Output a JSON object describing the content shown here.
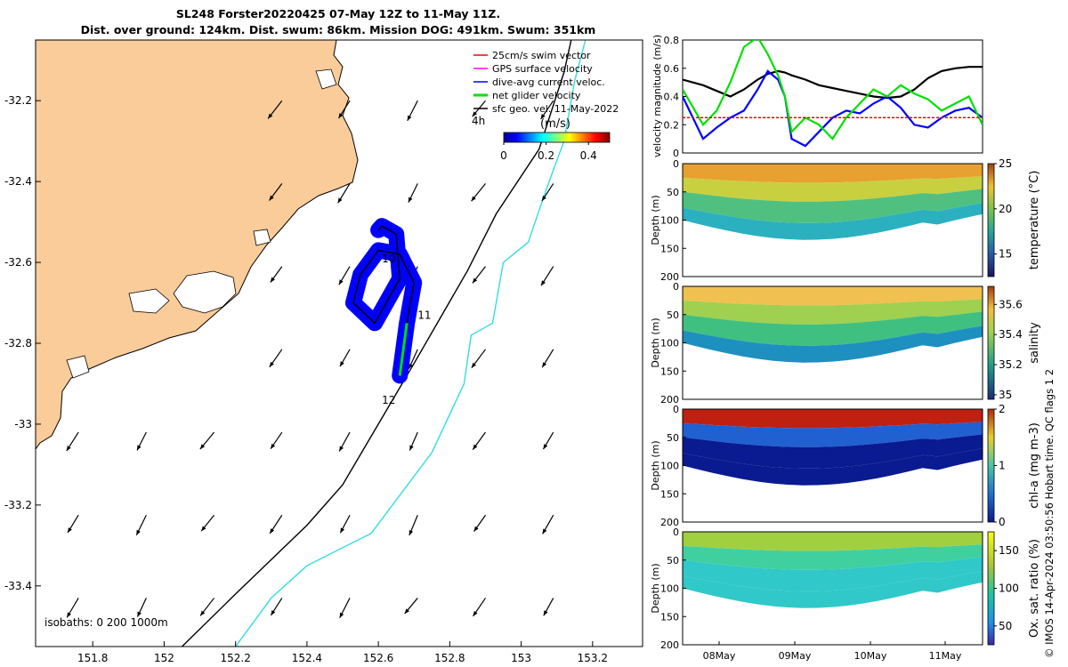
{
  "title_line1": "SL248 Forster20220425 07-May 12Z to 11-May 11Z.",
  "title_line2": "Dist. over ground: 124km. Dist. swum: 86km. Mission DOG: 491km. Swum: 351km",
  "footer": "© IMOS 14-Apr-2024 03:50:56 Hobart time. QC flags 1  2",
  "colors": {
    "land": "#f9cc9a",
    "dive_avg": "#0000ff",
    "swim": "#ff0000",
    "net": "#00e000",
    "gps": "#ff00ff",
    "isobath_200": "#000000",
    "isobath_1000": "#33dddd"
  },
  "chart_data": [
    {
      "type": "map",
      "x_ticks": [
        "151.8",
        "152",
        "152.2",
        "152.4",
        "152.6",
        "152.8",
        "153",
        "153.2"
      ],
      "y_ticks": [
        "-32.2",
        "-32.4",
        "-32.6",
        "-32.8",
        "-33",
        "-33.2",
        "-33.4"
      ],
      "xlim": [
        151.64,
        153.34
      ],
      "ylim": [
        -33.55,
        -32.05
      ],
      "legend": [
        {
          "label": "25cm/s swim vector",
          "color": "#ff0000"
        },
        {
          "label": "GPS surface velocity",
          "color": "#ff00ff"
        },
        {
          "label": "dive-avg current veloc.",
          "color": "#0000ff"
        },
        {
          "label": "net glider velocity",
          "color": "#00e000"
        },
        {
          "label": "sfc geo. vel. 11-May-2022",
          "color": "#000000"
        }
      ],
      "legend_placement": "top-right",
      "colorbar": {
        "label": "(m/s)",
        "range": [
          0,
          0.5
        ],
        "ticks": [
          "0",
          "0.2",
          "0.4"
        ],
        "colormap": "jet"
      },
      "scale_label": "4h",
      "day_labels": [
        {
          "text": "10",
          "x": 152.61,
          "y": -32.6
        },
        {
          "text": "11",
          "x": 152.71,
          "y": -32.74
        },
        {
          "text": "12",
          "x": 152.61,
          "y": -32.95
        }
      ],
      "isobaths_label": "isobaths: 0   200  1000m",
      "track": [
        [
          152.66,
          -32.88
        ],
        [
          152.68,
          -32.75
        ],
        [
          152.7,
          -32.65
        ],
        [
          152.66,
          -32.58
        ],
        [
          152.6,
          -32.57
        ],
        [
          152.55,
          -32.63
        ],
        [
          152.53,
          -32.7
        ],
        [
          152.59,
          -32.75
        ],
        [
          152.66,
          -32.64
        ],
        [
          152.65,
          -32.53
        ],
        [
          152.61,
          -32.51
        ],
        [
          152.6,
          -32.52
        ]
      ],
      "isobath_200": [
        [
          152.05,
          -33.55
        ],
        [
          152.2,
          -33.42
        ],
        [
          152.4,
          -33.25
        ],
        [
          152.5,
          -33.15
        ],
        [
          152.6,
          -33.0
        ],
        [
          152.7,
          -32.85
        ],
        [
          152.85,
          -32.62
        ],
        [
          152.93,
          -32.48
        ],
        [
          153.05,
          -32.32
        ],
        [
          153.12,
          -32.13
        ],
        [
          153.14,
          -32.05
        ]
      ],
      "isobath_1000": [
        [
          152.2,
          -33.55
        ],
        [
          152.3,
          -33.43
        ],
        [
          152.4,
          -33.35
        ],
        [
          152.58,
          -33.27
        ],
        [
          152.75,
          -33.07
        ],
        [
          152.84,
          -32.9
        ],
        [
          152.86,
          -32.78
        ],
        [
          152.92,
          -32.75
        ],
        [
          152.95,
          -32.6
        ],
        [
          153.02,
          -32.55
        ],
        [
          153.07,
          -32.42
        ],
        [
          153.12,
          -32.3
        ],
        [
          153.15,
          -32.15
        ],
        [
          153.18,
          -32.05
        ]
      ]
    },
    {
      "type": "line",
      "ylabel": "velocity magnitude (m/s)",
      "y_ticks": [
        "0",
        "0.2",
        "0.4",
        "0.6",
        "0.8"
      ],
      "ylim": [
        0,
        0.8
      ],
      "x": [
        0,
        0.3,
        0.5,
        0.7,
        0.9,
        1.1,
        1.25,
        1.4,
        1.5,
        1.6,
        1.8,
        2.0,
        2.2,
        2.4,
        2.6,
        2.8,
        3.0,
        3.2,
        3.4,
        3.6,
        3.8,
        4.0,
        4.2,
        4.4
      ],
      "series": [
        {
          "color": "#000000",
          "values": [
            0.52,
            0.48,
            0.44,
            0.4,
            0.45,
            0.52,
            0.56,
            0.58,
            0.57,
            0.55,
            0.52,
            0.48,
            0.46,
            0.44,
            0.42,
            0.4,
            0.39,
            0.4,
            0.45,
            0.53,
            0.58,
            0.6,
            0.61,
            0.61
          ]
        },
        {
          "color": "#0000ff",
          "values": [
            0.4,
            0.1,
            0.18,
            0.25,
            0.3,
            0.45,
            0.58,
            0.52,
            0.4,
            0.1,
            0.05,
            0.15,
            0.25,
            0.3,
            0.28,
            0.35,
            0.4,
            0.32,
            0.2,
            0.18,
            0.25,
            0.3,
            0.32,
            0.25
          ]
        },
        {
          "color": "#00e000",
          "values": [
            0.45,
            0.2,
            0.3,
            0.5,
            0.75,
            0.82,
            0.7,
            0.55,
            0.4,
            0.15,
            0.25,
            0.2,
            0.1,
            0.25,
            0.35,
            0.45,
            0.4,
            0.48,
            0.42,
            0.38,
            0.3,
            0.35,
            0.4,
            0.2
          ]
        },
        {
          "color": "#ff0000",
          "values": [
            0.25,
            0.25,
            0.25,
            0.25,
            0.25,
            0.25,
            0.25,
            0.25,
            0.25,
            0.25,
            0.25,
            0.25,
            0.25,
            0.25,
            0.25,
            0.25,
            0.25,
            0.25,
            0.25,
            0.25,
            0.25,
            0.25,
            0.25,
            0.25
          ]
        }
      ]
    },
    {
      "type": "heatmap",
      "ylabel": "Depth (m)",
      "y_ticks": [
        "0",
        "50",
        "100",
        "150",
        "200"
      ],
      "ylim": [
        200,
        0
      ],
      "colorbar_label": "temperature (°C)",
      "colorbar_ticks": [
        "15",
        "20",
        "25"
      ],
      "colorbar_range": [
        12.5,
        25
      ]
    },
    {
      "type": "heatmap",
      "ylabel": "Depth (m)",
      "y_ticks": [
        "0",
        "50",
        "100",
        "150",
        "200"
      ],
      "ylim": [
        200,
        0
      ],
      "colorbar_label": "salinity",
      "colorbar_ticks": [
        "35",
        "35.2",
        "35.4",
        "35.6"
      ],
      "colorbar_range": [
        34.97,
        35.72
      ]
    },
    {
      "type": "heatmap",
      "ylabel": "Depth (m)",
      "y_ticks": [
        "0",
        "50",
        "100",
        "150",
        "200"
      ],
      "ylim": [
        200,
        0
      ],
      "colorbar_label": "chl-a (mg m-3)",
      "colorbar_ticks": [
        "0",
        "1",
        "2"
      ],
      "colorbar_range": [
        0,
        2
      ]
    },
    {
      "type": "heatmap",
      "ylabel": "Depth (m)",
      "y_ticks": [
        "0",
        "50",
        "100",
        "150",
        "200"
      ],
      "ylim": [
        200,
        0
      ],
      "colorbar_label": "Ox. sat. ratio (%)",
      "colorbar_ticks": [
        "50",
        "100",
        "150"
      ],
      "colorbar_range": [
        25,
        175
      ],
      "x_ticks": [
        "08May",
        "09May",
        "10May",
        "11May"
      ]
    }
  ]
}
